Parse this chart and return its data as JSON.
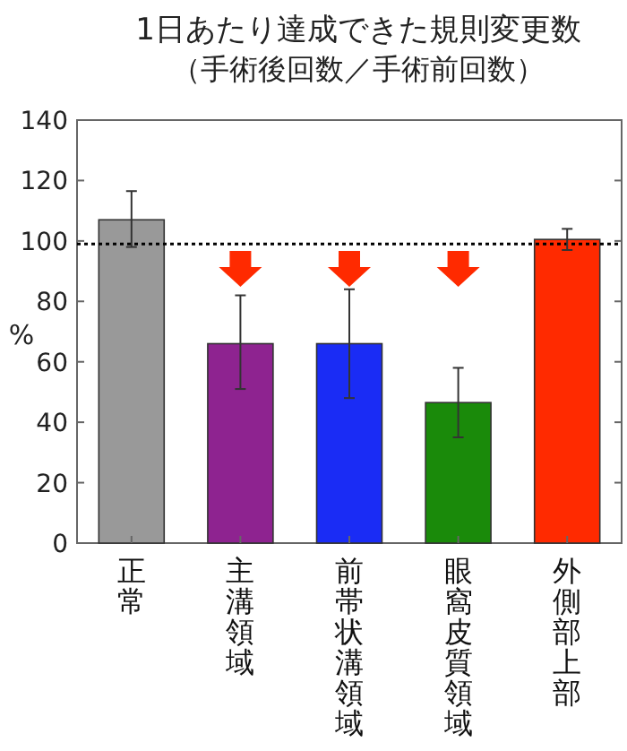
{
  "chart_data": {
    "type": "bar",
    "title": "1日あたり達成できた規則変更数",
    "subtitle": "（手術後回数／手術前回数）",
    "ylabel": "%",
    "categories": [
      "正常",
      "主溝領域",
      "前帯状溝領域",
      "眼窩皮質領域",
      "外側部上部"
    ],
    "values": [
      107,
      66,
      66,
      46.5,
      100.5
    ],
    "colors": [
      "#999999",
      "#8e2390",
      "#1a2cf5",
      "#1a8a0a",
      "#ff2a00"
    ],
    "errors": [
      [
        98,
        116.5
      ],
      [
        51,
        82
      ],
      [
        48,
        84
      ],
      [
        35,
        58
      ],
      [
        97,
        104
      ]
    ],
    "ylim": [
      0,
      140
    ],
    "yticks": [
      0,
      20,
      40,
      60,
      80,
      100,
      120,
      140
    ],
    "ref_lines": [
      {
        "axis": "y",
        "value": 99,
        "line_style": "dotted",
        "color": "#000000"
      }
    ],
    "grid": false
  }
}
